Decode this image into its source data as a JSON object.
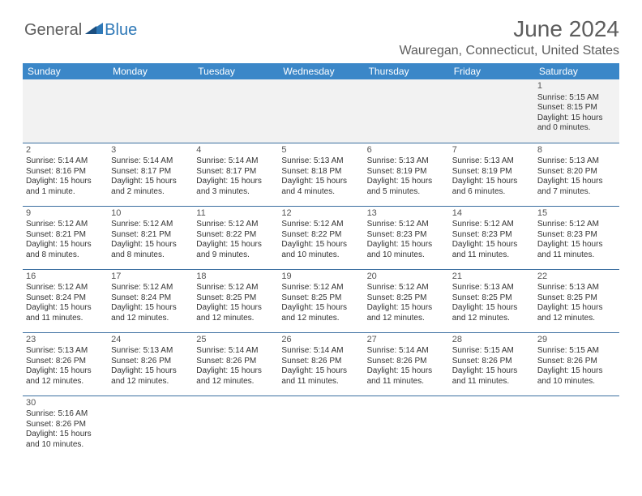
{
  "logo": {
    "text1": "General",
    "text2": "Blue"
  },
  "header": {
    "month_title": "June 2024",
    "location": "Wauregan, Connecticut, United States"
  },
  "calendar": {
    "header_bg": "#3b87c8",
    "header_fg": "#ffffff",
    "border_color": "#3b6fa0",
    "firstweek_bg": "#f2f2f2",
    "day_names": [
      "Sunday",
      "Monday",
      "Tuesday",
      "Wednesday",
      "Thursday",
      "Friday",
      "Saturday"
    ],
    "weeks": [
      [
        null,
        null,
        null,
        null,
        null,
        null,
        {
          "n": "1",
          "sr": "Sunrise: 5:15 AM",
          "ss": "Sunset: 8:15 PM",
          "d1": "Daylight: 15 hours",
          "d2": "and 0 minutes."
        }
      ],
      [
        {
          "n": "2",
          "sr": "Sunrise: 5:14 AM",
          "ss": "Sunset: 8:16 PM",
          "d1": "Daylight: 15 hours",
          "d2": "and 1 minute."
        },
        {
          "n": "3",
          "sr": "Sunrise: 5:14 AM",
          "ss": "Sunset: 8:17 PM",
          "d1": "Daylight: 15 hours",
          "d2": "and 2 minutes."
        },
        {
          "n": "4",
          "sr": "Sunrise: 5:14 AM",
          "ss": "Sunset: 8:17 PM",
          "d1": "Daylight: 15 hours",
          "d2": "and 3 minutes."
        },
        {
          "n": "5",
          "sr": "Sunrise: 5:13 AM",
          "ss": "Sunset: 8:18 PM",
          "d1": "Daylight: 15 hours",
          "d2": "and 4 minutes."
        },
        {
          "n": "6",
          "sr": "Sunrise: 5:13 AM",
          "ss": "Sunset: 8:19 PM",
          "d1": "Daylight: 15 hours",
          "d2": "and 5 minutes."
        },
        {
          "n": "7",
          "sr": "Sunrise: 5:13 AM",
          "ss": "Sunset: 8:19 PM",
          "d1": "Daylight: 15 hours",
          "d2": "and 6 minutes."
        },
        {
          "n": "8",
          "sr": "Sunrise: 5:13 AM",
          "ss": "Sunset: 8:20 PM",
          "d1": "Daylight: 15 hours",
          "d2": "and 7 minutes."
        }
      ],
      [
        {
          "n": "9",
          "sr": "Sunrise: 5:12 AM",
          "ss": "Sunset: 8:21 PM",
          "d1": "Daylight: 15 hours",
          "d2": "and 8 minutes."
        },
        {
          "n": "10",
          "sr": "Sunrise: 5:12 AM",
          "ss": "Sunset: 8:21 PM",
          "d1": "Daylight: 15 hours",
          "d2": "and 8 minutes."
        },
        {
          "n": "11",
          "sr": "Sunrise: 5:12 AM",
          "ss": "Sunset: 8:22 PM",
          "d1": "Daylight: 15 hours",
          "d2": "and 9 minutes."
        },
        {
          "n": "12",
          "sr": "Sunrise: 5:12 AM",
          "ss": "Sunset: 8:22 PM",
          "d1": "Daylight: 15 hours",
          "d2": "and 10 minutes."
        },
        {
          "n": "13",
          "sr": "Sunrise: 5:12 AM",
          "ss": "Sunset: 8:23 PM",
          "d1": "Daylight: 15 hours",
          "d2": "and 10 minutes."
        },
        {
          "n": "14",
          "sr": "Sunrise: 5:12 AM",
          "ss": "Sunset: 8:23 PM",
          "d1": "Daylight: 15 hours",
          "d2": "and 11 minutes."
        },
        {
          "n": "15",
          "sr": "Sunrise: 5:12 AM",
          "ss": "Sunset: 8:23 PM",
          "d1": "Daylight: 15 hours",
          "d2": "and 11 minutes."
        }
      ],
      [
        {
          "n": "16",
          "sr": "Sunrise: 5:12 AM",
          "ss": "Sunset: 8:24 PM",
          "d1": "Daylight: 15 hours",
          "d2": "and 11 minutes."
        },
        {
          "n": "17",
          "sr": "Sunrise: 5:12 AM",
          "ss": "Sunset: 8:24 PM",
          "d1": "Daylight: 15 hours",
          "d2": "and 12 minutes."
        },
        {
          "n": "18",
          "sr": "Sunrise: 5:12 AM",
          "ss": "Sunset: 8:25 PM",
          "d1": "Daylight: 15 hours",
          "d2": "and 12 minutes."
        },
        {
          "n": "19",
          "sr": "Sunrise: 5:12 AM",
          "ss": "Sunset: 8:25 PM",
          "d1": "Daylight: 15 hours",
          "d2": "and 12 minutes."
        },
        {
          "n": "20",
          "sr": "Sunrise: 5:12 AM",
          "ss": "Sunset: 8:25 PM",
          "d1": "Daylight: 15 hours",
          "d2": "and 12 minutes."
        },
        {
          "n": "21",
          "sr": "Sunrise: 5:13 AM",
          "ss": "Sunset: 8:25 PM",
          "d1": "Daylight: 15 hours",
          "d2": "and 12 minutes."
        },
        {
          "n": "22",
          "sr": "Sunrise: 5:13 AM",
          "ss": "Sunset: 8:25 PM",
          "d1": "Daylight: 15 hours",
          "d2": "and 12 minutes."
        }
      ],
      [
        {
          "n": "23",
          "sr": "Sunrise: 5:13 AM",
          "ss": "Sunset: 8:26 PM",
          "d1": "Daylight: 15 hours",
          "d2": "and 12 minutes."
        },
        {
          "n": "24",
          "sr": "Sunrise: 5:13 AM",
          "ss": "Sunset: 8:26 PM",
          "d1": "Daylight: 15 hours",
          "d2": "and 12 minutes."
        },
        {
          "n": "25",
          "sr": "Sunrise: 5:14 AM",
          "ss": "Sunset: 8:26 PM",
          "d1": "Daylight: 15 hours",
          "d2": "and 12 minutes."
        },
        {
          "n": "26",
          "sr": "Sunrise: 5:14 AM",
          "ss": "Sunset: 8:26 PM",
          "d1": "Daylight: 15 hours",
          "d2": "and 11 minutes."
        },
        {
          "n": "27",
          "sr": "Sunrise: 5:14 AM",
          "ss": "Sunset: 8:26 PM",
          "d1": "Daylight: 15 hours",
          "d2": "and 11 minutes."
        },
        {
          "n": "28",
          "sr": "Sunrise: 5:15 AM",
          "ss": "Sunset: 8:26 PM",
          "d1": "Daylight: 15 hours",
          "d2": "and 11 minutes."
        },
        {
          "n": "29",
          "sr": "Sunrise: 5:15 AM",
          "ss": "Sunset: 8:26 PM",
          "d1": "Daylight: 15 hours",
          "d2": "and 10 minutes."
        }
      ],
      [
        {
          "n": "30",
          "sr": "Sunrise: 5:16 AM",
          "ss": "Sunset: 8:26 PM",
          "d1": "Daylight: 15 hours",
          "d2": "and 10 minutes."
        },
        null,
        null,
        null,
        null,
        null,
        null
      ]
    ]
  }
}
